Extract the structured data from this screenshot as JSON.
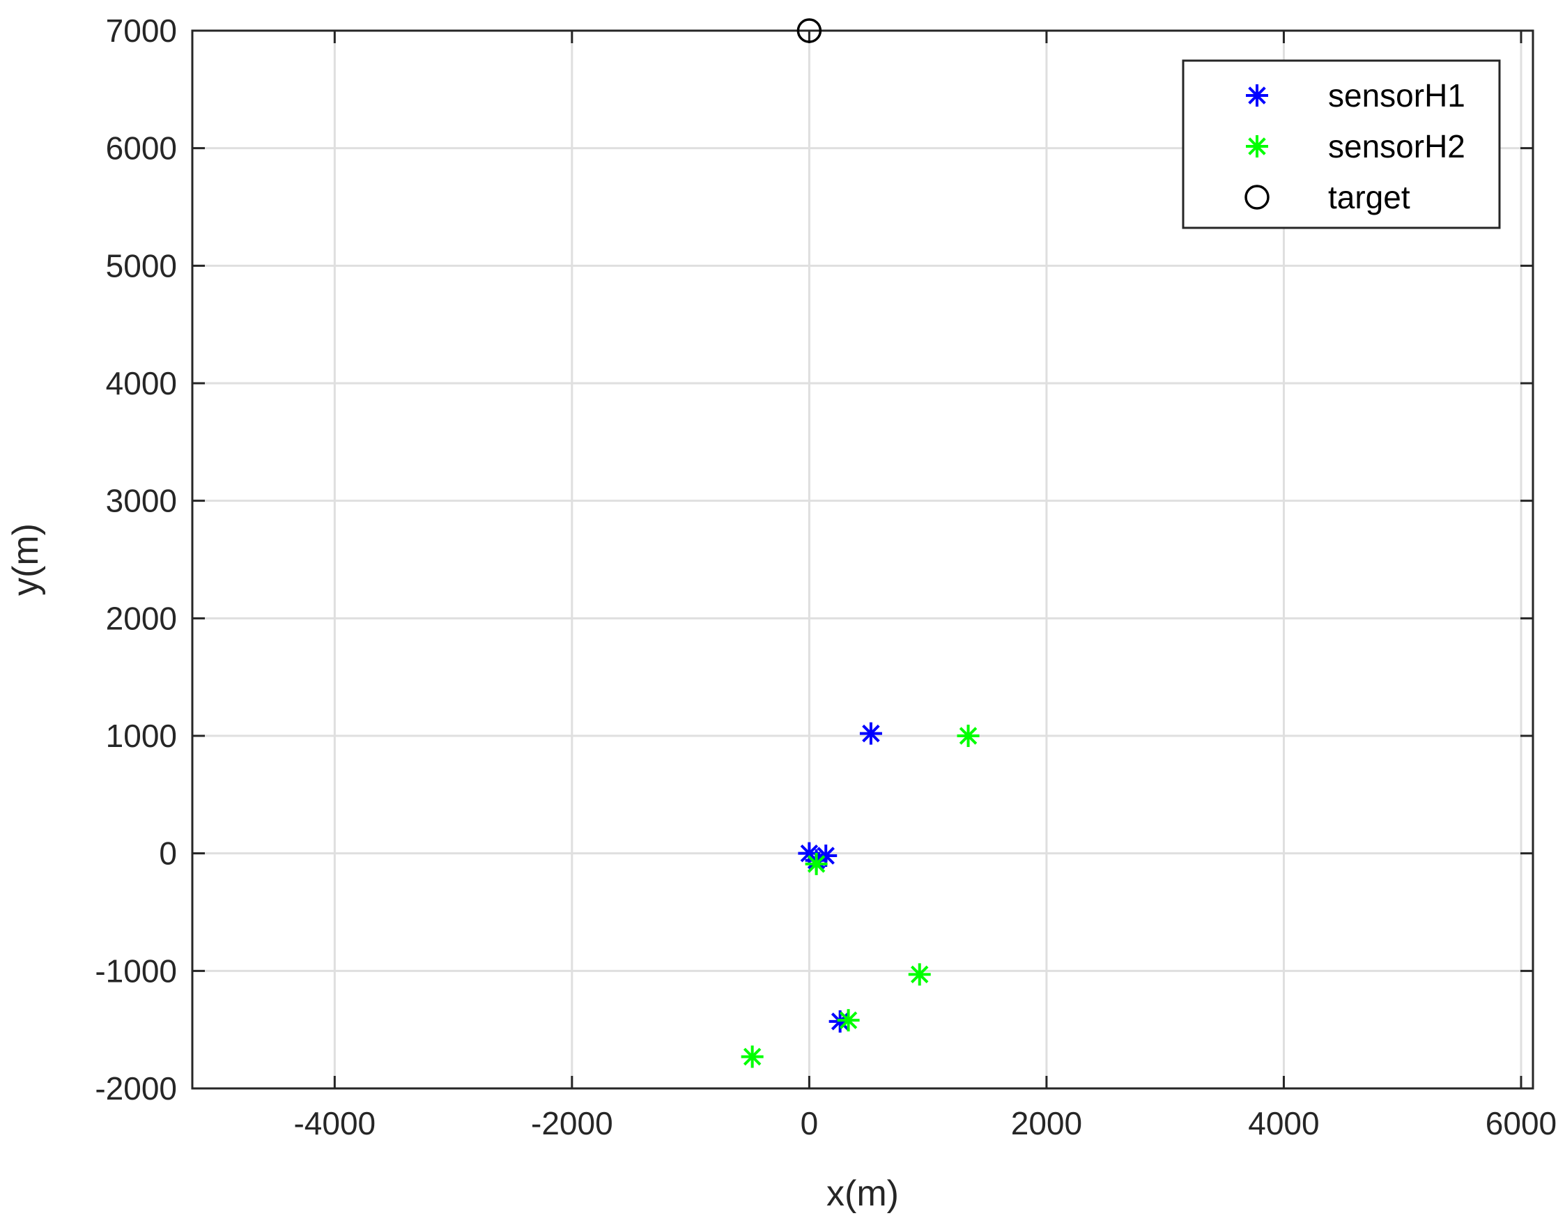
{
  "chart_data": {
    "type": "scatter",
    "title": "",
    "xlabel": "x(m)",
    "ylabel": "y(m)",
    "xlim": [
      -5200,
      6100
    ],
    "ylim": [
      -2000,
      7000
    ],
    "xticks": [
      -4000,
      -2000,
      0,
      2000,
      4000,
      6000
    ],
    "yticks": [
      -2000,
      -1000,
      0,
      1000,
      2000,
      3000,
      4000,
      5000,
      6000,
      7000
    ],
    "grid": true,
    "legend_position": "top-right",
    "series": [
      {
        "name": "sensorH1",
        "marker": "asterisk",
        "color": "#0000ff",
        "points": [
          [
            0,
            0
          ],
          [
            140,
            -20
          ],
          [
            60,
            -60
          ],
          [
            520,
            1020
          ],
          [
            260,
            -1430
          ]
        ]
      },
      {
        "name": "sensorH2",
        "marker": "asterisk",
        "color": "#00ff00",
        "points": [
          [
            60,
            -90
          ],
          [
            1340,
            1000
          ],
          [
            930,
            -1030
          ],
          [
            330,
            -1420
          ],
          [
            -480,
            -1730
          ]
        ]
      },
      {
        "name": "target",
        "marker": "circle",
        "color": "#000000",
        "points": [
          [
            0,
            7000
          ]
        ]
      }
    ]
  }
}
